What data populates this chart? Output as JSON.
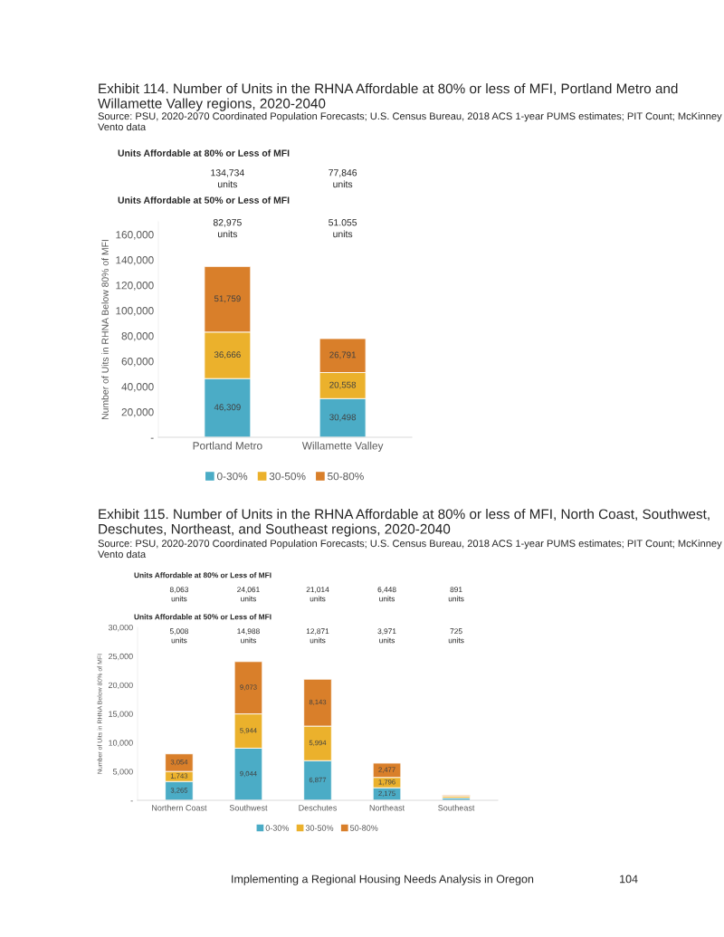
{
  "chart_data": [
    {
      "type": "bar",
      "stacked": true,
      "title": "Exhibit 114. Number of Units in the RHNA Affordable at 80% or less of MFI, Portland Metro and Willamette Valley regions, 2020-2040",
      "subtitle": "Source: PSU, 2020-2070 Coordinated Population Forecasts; U.S. Census Bureau, 2018 ACS 1-year PUMS estimates; PIT Count; McKinney Vento data",
      "ylabel": "Number of Uits in RHNA Below 80% of MFI",
      "categories": [
        "Portland Metro",
        "Willamette Valley"
      ],
      "series": [
        {
          "name": "0-30%",
          "color": "#4bacc6",
          "values": [
            46309,
            30498
          ],
          "value_labels": [
            "46,309",
            "30,498"
          ]
        },
        {
          "name": "30-50%",
          "color": "#ebb12c",
          "values": [
            36666,
            20558
          ],
          "value_labels": [
            "36,666",
            "20,558"
          ]
        },
        {
          "name": "50-80%",
          "color": "#d97f2a",
          "values": [
            51759,
            26791
          ],
          "value_labels": [
            "51,759",
            "26,791"
          ]
        }
      ],
      "ylim": [
        0,
        170000
      ],
      "yticks": [
        {
          "value": 0,
          "label": "-"
        },
        {
          "value": 20000,
          "label": "20,000"
        },
        {
          "value": 40000,
          "label": "40,000"
        },
        {
          "value": 60000,
          "label": "60,000"
        },
        {
          "value": 80000,
          "label": "80,000"
        },
        {
          "value": 100000,
          "label": "100,000"
        },
        {
          "value": 120000,
          "label": "120,000"
        },
        {
          "value": 140000,
          "label": "140,000"
        },
        {
          "value": 160000,
          "label": "160,000"
        }
      ],
      "annotations": [
        "Units Affordable at 80% or Less of MFI",
        "134,734\nunits",
        "77,846\nunits",
        "Units Affordable at 50% or Less of MFI",
        "82,975\nunits",
        "51.055\nunits"
      ],
      "legend": "bottom",
      "grid": false
    },
    {
      "type": "bar",
      "stacked": true,
      "title": "Exhibit 115. Number of Units in the RHNA Affordable at 80% or less of MFI, North Coast, Southwest, Deschutes, Northeast, and Southeast regions, 2020-2040",
      "subtitle": "Source: PSU, 2020-2070 Coordinated Population Forecasts; U.S. Census Bureau, 2018 ACS 1-year PUMS estimates; PIT Count; McKinney Vento data",
      "ylabel": "Number of Uits in RHNA Below 80% of MFI",
      "categories": [
        "Northern Coast",
        "Southwest",
        "Deschutes",
        "Northeast",
        "Southeast"
      ],
      "series": [
        {
          "name": "0-30%",
          "color": "#4bacc6",
          "values": [
            3265,
            9044,
            6877,
            2175,
            400
          ],
          "value_labels": [
            "3,265",
            "9,044",
            "6,877",
            "2,175",
            null
          ]
        },
        {
          "name": "30-50%",
          "color": "#ebb12c",
          "values": [
            1743,
            5944,
            5994,
            1796,
            300
          ],
          "value_labels": [
            "1,743",
            "5,944",
            "5,994",
            "1,796",
            null
          ]
        },
        {
          "name": "50-80%",
          "color": "#d97f2a",
          "values": [
            3054,
            9073,
            8143,
            2477,
            200
          ],
          "value_labels": [
            "3,054",
            "9,073",
            "8,143",
            "2,477",
            null
          ]
        }
      ],
      "ylim": [
        0,
        30000
      ],
      "yticks": [
        {
          "value": 0,
          "label": "-"
        },
        {
          "value": 5000,
          "label": "5,000"
        },
        {
          "value": 10000,
          "label": "10,000"
        },
        {
          "value": 15000,
          "label": "15,000"
        },
        {
          "value": 20000,
          "label": "20,000"
        },
        {
          "value": 25000,
          "label": "25,000"
        },
        {
          "value": 30000,
          "label": "30,000"
        }
      ],
      "annotations": [
        "Units Affordable at 80% or Less of MFI",
        "8,063\nunits",
        "24,061\nunits",
        "21,014\nunits",
        "6,448\nunits",
        "891\nunits",
        "Units Affordable at 50% or Less of MFI",
        "5,008\nunits",
        "14,988\nunits",
        "12,871\nunits",
        "3,971\nunits",
        "725\nunits",
        "Implementing a Regional Housing Needs Analysis in Oregon",
        "104"
      ],
      "legend": "bottom",
      "grid": false
    }
  ]
}
